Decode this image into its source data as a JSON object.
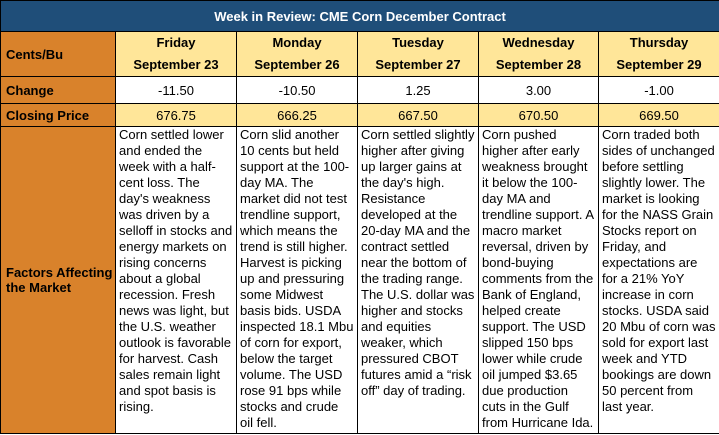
{
  "title": "Week in Review: CME Corn December Contract",
  "row_labels": {
    "units": "Cents/Bu",
    "change": "Change",
    "closing": "Closing Price",
    "factors": "Factors Affecting the Market"
  },
  "days": [
    {
      "day": "Friday",
      "date": "September 23",
      "change": "-11.50",
      "closing": "676.75",
      "factors": "Corn settled lower and ended the week with a half-cent loss. The day's weakness was driven by a selloff in stocks and energy markets on rising concerns about a global recession. Fresh news was light, but the U.S. weather outlook is favorable for harvest. Cash sales remain light and spot basis is rising."
    },
    {
      "day": "Monday",
      "date": "September 26",
      "change": "-10.50",
      "closing": "666.25",
      "factors": "Corn slid another 10 cents but held support at the 100-day MA. The market did not test trendline support, which means the trend is still higher. Harvest is picking up and pressuring some Midwest basis bids. USDA inspected 18.1 Mbu of corn for export, below the target volume. The USD rose 91 bps while stocks and crude oil fell."
    },
    {
      "day": "Tuesday",
      "date": "September 27",
      "change": "1.25",
      "closing": "667.50",
      "factors": "Corn settled slightly higher after giving up larger gains at the day's high. Resistance developed at the 20-day MA and the contract settled near the bottom of the trading range. The U.S. dollar was higher and stocks and equities weaker, which pressured CBOT futures amid a “risk off” day of trading."
    },
    {
      "day": "Wednesday",
      "date": "September 28",
      "change": "3.00",
      "closing": "670.50",
      "factors": "Corn pushed higher after early weakness brought it below the 100-day MA and trendline support. A macro market reversal, driven by bond-buying comments from the Bank of England, helped create support. The USD slipped 150 bps lower while crude oil jumped $3.65 due production cuts in the Gulf from Hurricane Ida."
    },
    {
      "day": "Thursday",
      "date": "September 29",
      "change": "-1.00",
      "closing": "669.50",
      "factors": "Corn traded both sides of unchanged before settling slightly lower. The market is looking for the NASS Grain Stocks report on Friday, and expectations are for a 21% YoY increase in corn stocks. USDA said 20 Mbu of corn was sold for export last week and YTD bookings are down 50 percent from last year."
    }
  ]
}
